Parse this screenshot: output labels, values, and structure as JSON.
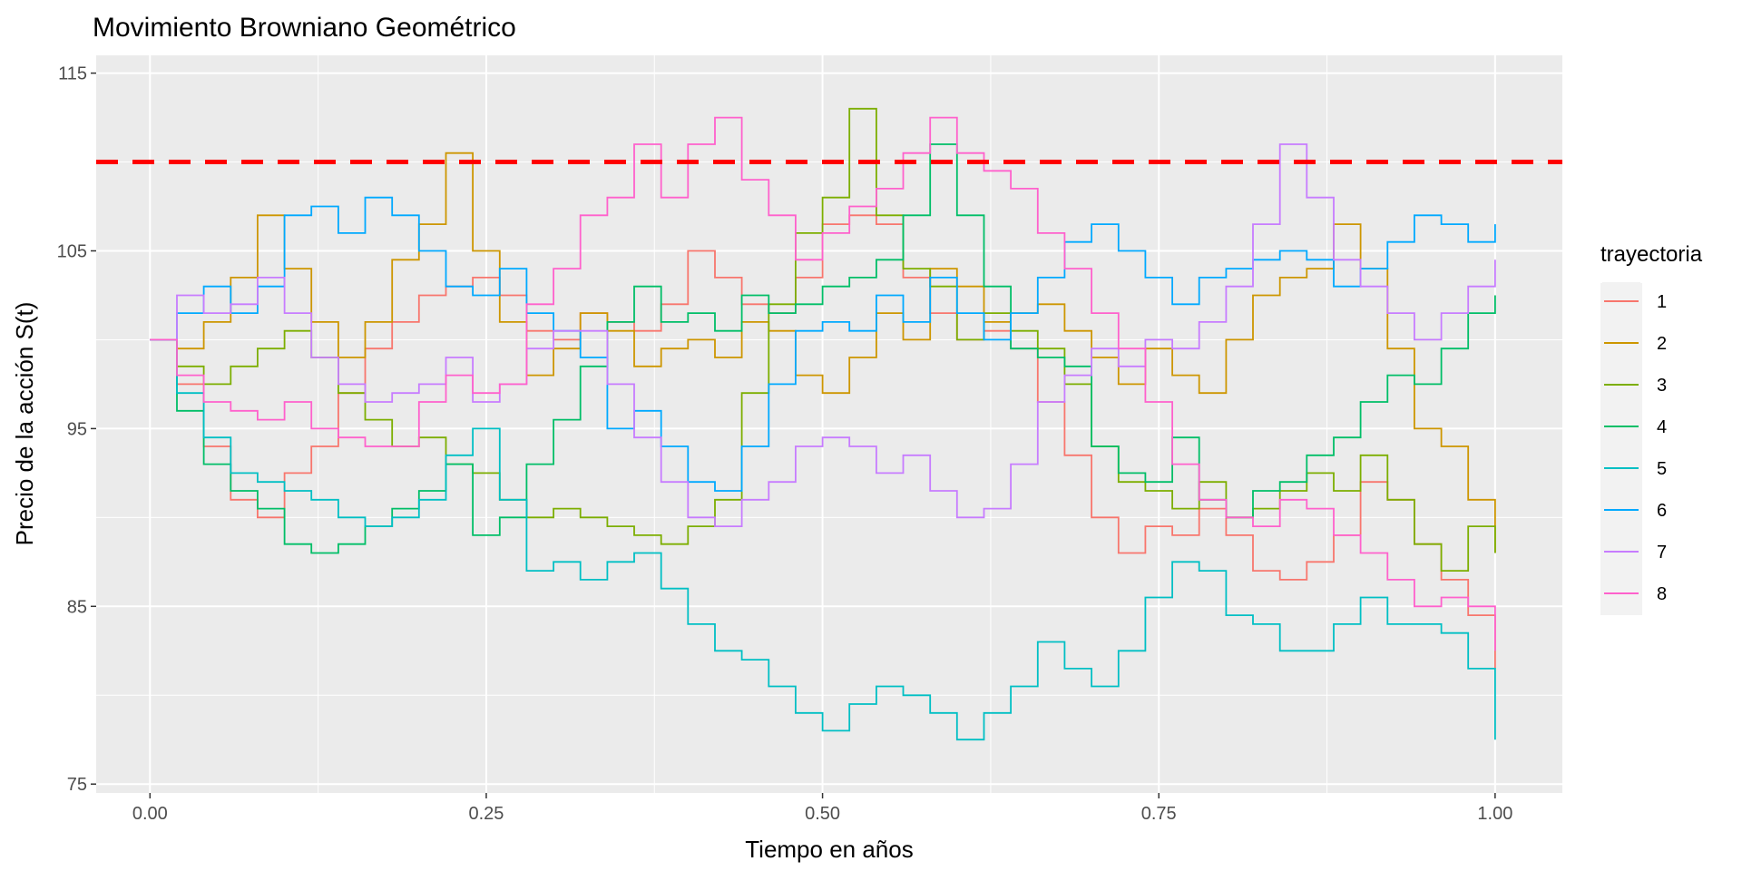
{
  "chart_data": {
    "type": "line",
    "title": "Movimiento Browniano Geométrico",
    "xlabel": "Tiempo en años",
    "ylabel": "Precio de la acción S(t)",
    "xlim": [
      -0.04,
      1.05
    ],
    "ylim": [
      74.5,
      116
    ],
    "x_ticks": [
      0.0,
      0.25,
      0.5,
      0.75,
      1.0
    ],
    "x_tick_labels": [
      "0.00",
      "0.25",
      "0.50",
      "0.75",
      "1.00"
    ],
    "y_ticks": [
      75,
      85,
      95,
      105,
      115
    ],
    "y_tick_labels": [
      "75",
      "85",
      "95",
      "105",
      "115"
    ],
    "grid": true,
    "legend": {
      "title": "trayectoria",
      "position": "right"
    },
    "reference_line": {
      "y": 110,
      "color": "#ff0000",
      "style": "dashed"
    },
    "x": [
      0.0,
      0.02,
      0.04,
      0.06,
      0.08,
      0.1,
      0.12,
      0.14,
      0.16,
      0.18,
      0.2,
      0.22,
      0.24,
      0.26,
      0.28,
      0.3,
      0.32,
      0.34,
      0.36,
      0.38,
      0.4,
      0.42,
      0.44,
      0.46,
      0.48,
      0.5,
      0.52,
      0.54,
      0.56,
      0.58,
      0.6,
      0.62,
      0.64,
      0.66,
      0.68,
      0.7,
      0.72,
      0.74,
      0.76,
      0.78,
      0.8,
      0.82,
      0.84,
      0.86,
      0.88,
      0.9,
      0.92,
      0.94,
      0.96,
      0.98,
      1.0
    ],
    "series": [
      {
        "name": "1",
        "color": "#F8766D",
        "values": [
          100,
          97.5,
          94,
          91,
          90,
          92.5,
          94,
          97,
          99.5,
          101,
          102.5,
          103,
          103.5,
          102.5,
          100.5,
          100,
          101.5,
          101,
          100.5,
          102,
          105,
          103.5,
          102,
          101.5,
          103.5,
          106.5,
          107,
          106.5,
          103.5,
          101.5,
          100,
          100.5,
          99.5,
          96.5,
          93.5,
          90,
          88,
          89.5,
          89,
          90.5,
          89,
          87,
          86.5,
          87.5,
          89,
          92,
          91,
          88.5,
          86.5,
          84.5,
          81.5
        ]
      },
      {
        "name": "2",
        "color": "#CD9600",
        "values": [
          100,
          99.5,
          101,
          103.5,
          107,
          104,
          101,
          99,
          101,
          104.5,
          106.5,
          110.5,
          105,
          101,
          98,
          99.5,
          101.5,
          100.5,
          98.5,
          99.5,
          100,
          99,
          101,
          100.5,
          98,
          97,
          99,
          101.5,
          100,
          104,
          103,
          101,
          101.5,
          102,
          100.5,
          99,
          97.5,
          99.5,
          98,
          97,
          100,
          102.5,
          103.5,
          104,
          106.5,
          104,
          99.5,
          95,
          94,
          91,
          88
        ]
      },
      {
        "name": "3",
        "color": "#7CAE00",
        "values": [
          100,
          98.5,
          97.5,
          98.5,
          99.5,
          100.5,
          99,
          97,
          95.5,
          94,
          94.5,
          93,
          92.5,
          91,
          90,
          90.5,
          90,
          89.5,
          89,
          88.5,
          89.5,
          91,
          97,
          102,
          106,
          108,
          113,
          107,
          104,
          103,
          100,
          101.5,
          100.5,
          99.5,
          97.5,
          94,
          92,
          91.5,
          90.5,
          92,
          90,
          90.5,
          91.5,
          92.5,
          91.5,
          93.5,
          91,
          88.5,
          87,
          89.5,
          88
        ]
      },
      {
        "name": "4",
        "color": "#00BE67",
        "values": [
          100,
          96,
          93,
          91.5,
          90.5,
          88.5,
          88,
          88.5,
          89.5,
          90.5,
          91.5,
          93,
          89,
          90,
          93,
          95.5,
          98.5,
          101,
          103,
          101,
          101.5,
          100.5,
          102.5,
          101.5,
          102,
          103,
          103.5,
          104.5,
          107,
          111,
          107,
          103,
          99.5,
          99,
          98.5,
          94,
          92.5,
          92,
          94.5,
          91,
          90,
          91.5,
          92,
          93.5,
          94.5,
          96.5,
          98,
          97.5,
          99.5,
          101.5,
          102.5
        ]
      },
      {
        "name": "5",
        "color": "#00BFC4",
        "values": [
          100,
          97,
          94.5,
          92.5,
          92,
          91.5,
          91,
          90,
          89.5,
          90,
          91,
          93.5,
          95,
          91,
          87,
          87.5,
          86.5,
          87.5,
          88,
          86,
          84,
          82.5,
          82,
          80.5,
          79,
          78,
          79.5,
          80.5,
          80,
          79,
          77.5,
          79,
          80.5,
          83,
          81.5,
          80.5,
          82.5,
          85.5,
          87.5,
          87,
          84.5,
          84,
          82.5,
          82.5,
          84,
          85.5,
          84,
          84,
          83.5,
          81.5,
          77.5
        ]
      },
      {
        "name": "6",
        "color": "#00A9FF",
        "values": [
          100,
          101.5,
          103,
          101.5,
          103,
          107,
          107.5,
          106,
          108,
          107,
          105,
          103,
          102.5,
          104,
          101.5,
          100.5,
          99,
          95,
          96,
          94,
          92,
          91.5,
          94,
          97.5,
          100.5,
          101,
          100.5,
          102.5,
          101,
          103.5,
          101.5,
          100,
          101.5,
          103.5,
          105.5,
          106.5,
          105,
          103.5,
          102,
          103.5,
          104,
          104.5,
          105,
          104.5,
          103,
          104,
          105.5,
          107,
          106.5,
          105.5,
          106.5
        ]
      },
      {
        "name": "7",
        "color": "#C77CFF",
        "values": [
          100,
          102.5,
          101.5,
          102,
          103.5,
          101.5,
          99,
          97.5,
          96.5,
          97,
          97.5,
          99,
          96.5,
          97.5,
          99.5,
          100.5,
          100.5,
          97.5,
          94.5,
          92,
          90,
          89.5,
          91,
          92,
          94,
          94.5,
          94,
          92.5,
          93.5,
          91.5,
          90,
          90.5,
          93,
          96.5,
          98,
          99.5,
          98.5,
          100,
          99.5,
          101,
          103,
          106.5,
          111,
          108,
          104.5,
          103,
          101.5,
          100,
          101.5,
          103,
          104.5
        ]
      },
      {
        "name": "8",
        "color": "#FF61CC",
        "values": [
          100,
          98,
          96.5,
          96,
          95.5,
          96.5,
          95,
          94.5,
          94,
          94,
          96.5,
          98,
          97,
          97.5,
          102,
          104,
          107,
          108,
          111,
          108,
          111,
          112.5,
          109,
          107,
          104.5,
          106,
          107.5,
          108.5,
          110.5,
          112.5,
          110.5,
          109.5,
          108.5,
          106,
          104,
          101.5,
          99.5,
          96.5,
          93,
          91,
          90,
          89.5,
          91,
          90.5,
          89,
          88,
          86.5,
          85,
          85.5,
          85,
          82.5
        ]
      }
    ]
  }
}
